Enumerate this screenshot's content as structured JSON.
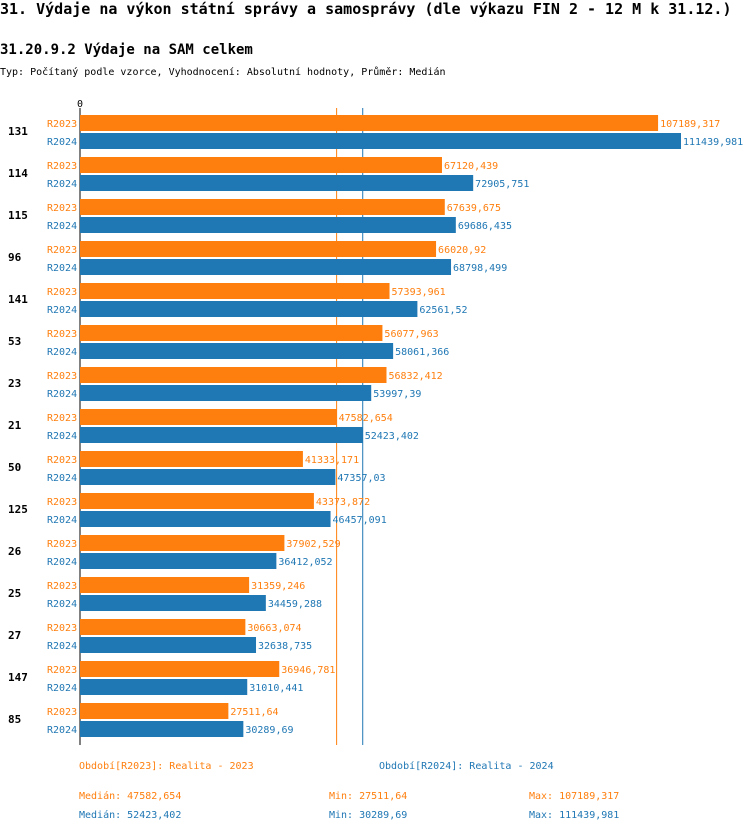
{
  "header": {
    "title": "31. Výdaje na výkon státní správy a samosprávy (dle výkazu FIN 2 - 12 M k 31.12.)",
    "subtitle": "31.20.9.2 Výdaje na SAM celkem",
    "type_line": "Typ: Počítaný podle vzorce, Vyhodnocení: Absolutní hodnoty, Průměr: Medián"
  },
  "chart_data": {
    "type": "bar",
    "orientation": "horizontal",
    "axis_zero_label": "0",
    "xlim": [
      0,
      111439.981
    ],
    "categories": [
      "131",
      "114",
      "115",
      "96",
      "141",
      "53",
      "23",
      "21",
      "50",
      "125",
      "26",
      "25",
      "27",
      "147",
      "85"
    ],
    "series": [
      {
        "name": "R2023",
        "color": "#ff7f0e",
        "values": [
          107189.317,
          67120.439,
          67639.675,
          66020.92,
          57393.961,
          56077.963,
          56832.412,
          47582.654,
          41333.171,
          43373.872,
          37902.529,
          31359.246,
          30663.074,
          36946.781,
          27511.64
        ],
        "labels": [
          "107189,317",
          "67120,439",
          "67639,675",
          "66020,92",
          "57393,961",
          "56077,963",
          "56832,412",
          "47582,654",
          "41333,171",
          "43373,872",
          "37902,529",
          "31359,246",
          "30663,074",
          "36946,781",
          "27511,64"
        ]
      },
      {
        "name": "R2024",
        "color": "#1f77b4",
        "values": [
          111439.981,
          72905.751,
          69686.435,
          68798.499,
          62561.52,
          58061.366,
          53997.39,
          52423.402,
          47357.03,
          46457.091,
          36412.052,
          34459.288,
          32638.735,
          31010.441,
          30289.69
        ],
        "labels": [
          "111439,981",
          "72905,751",
          "69686,435",
          "68798,499",
          "62561,52",
          "58061,366",
          "53997,39",
          "52423,402",
          "47357,03",
          "46457,091",
          "36412,052",
          "34459,288",
          "32638,735",
          "31010,441",
          "30289,69"
        ]
      }
    ],
    "reference_lines": [
      {
        "series": "R2023",
        "value": 47582.654
      },
      {
        "series": "R2024",
        "value": 52423.402
      }
    ]
  },
  "legend": {
    "r2023": {
      "period": "Období[R2023]: Realita - 2023",
      "median": "Medián: 47582,654",
      "min": "Min: 27511,64",
      "max": "Max: 107189,317"
    },
    "r2024": {
      "period": "Období[R2024]: Realita - 2024",
      "median": "Medián: 52423,402",
      "min": "Min: 30289,69",
      "max": "Max: 111439,981"
    }
  }
}
